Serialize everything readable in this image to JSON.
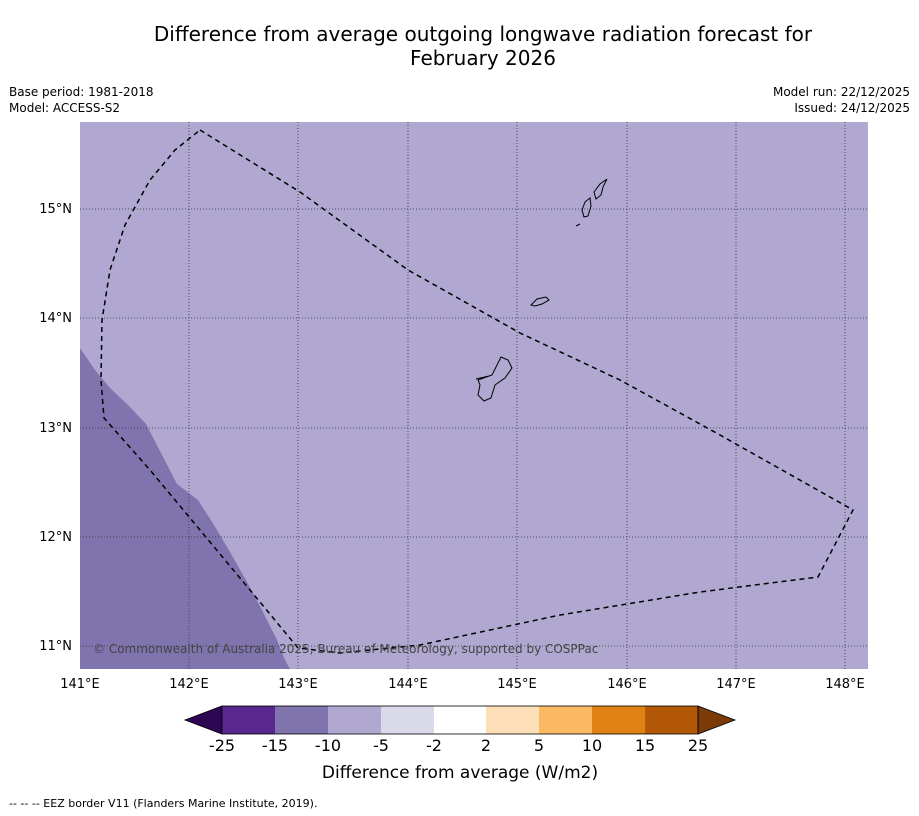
{
  "title_line1": "Difference from average outgoing longwave radiation forecast for",
  "title_line2": "February 2026",
  "base_period": "Base period: 1981-2018",
  "model": "Model: ACCESS-S2",
  "model_run": "Model run: 22/12/2025",
  "issued": "Issued: 24/12/2025",
  "copyright": "© Commonwealth of Australia 2025, Bureau of Meteorology, supported by COSPPac",
  "colorbar_title": "Difference from average (W/m2)",
  "footer_note": "--  --  -- EEZ border V11 (Flanders Marine Institute, 2019).",
  "lat_labels": [
    "15°N",
    "14°N",
    "13°N",
    "12°N",
    "11°N"
  ],
  "lon_labels": [
    "141°E",
    "142°E",
    "143°E",
    "144°E",
    "145°E",
    "146°E",
    "147°E",
    "148°E"
  ],
  "colorbar_labels": [
    "-25",
    "-15",
    "-10",
    "-5",
    "-2",
    "2",
    "5",
    "10",
    "15",
    "25"
  ],
  "colors": {
    "background_anomaly": "#b0a8d0",
    "stronger_anomaly": "#8074ae",
    "cb_extend_low": "#2e0654",
    "cb_extend_high": "#7a3b08",
    "cb_bins": [
      "#5a2791",
      "#8074ae",
      "#b0a8d0",
      "#dad9ea",
      "#ffffff",
      "#fde0b7",
      "#fcb862",
      "#e08214",
      "#b35806"
    ]
  }
}
